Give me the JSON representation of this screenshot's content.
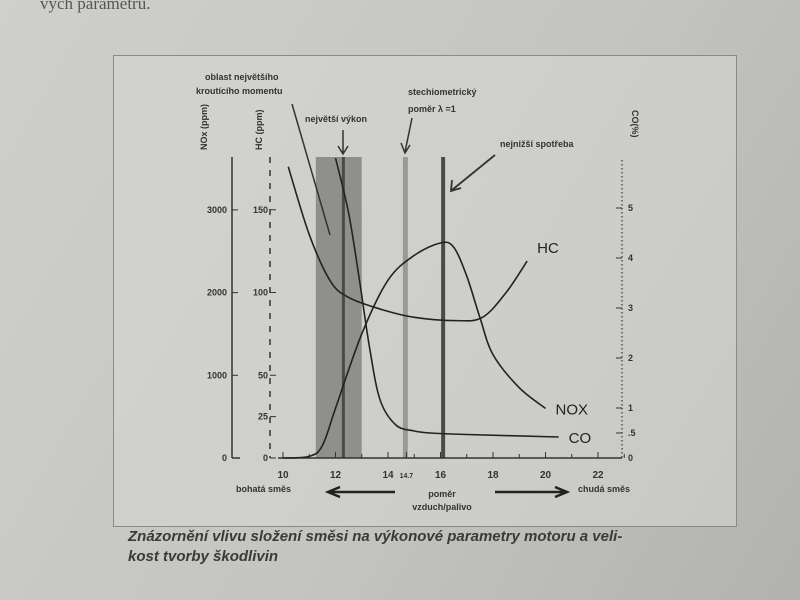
{
  "page_text_top": "vých parametrů.",
  "caption": [
    "Znázornění vlivu složení směsi na výkonové parametry motoru a veli-",
    "kost tvorby škodlivin"
  ],
  "chart_data": {
    "type": "line",
    "xlabel": "poměr vzduch/palivo",
    "x_left_label": "bohatá směs",
    "x_right_label": "chudá směs",
    "xlim": [
      10,
      23
    ],
    "x_ticks": [
      "10",
      "12",
      "14",
      "14.7",
      "16",
      "18",
      "20",
      "22"
    ],
    "x_tick_values": [
      10,
      12,
      14,
      14.7,
      16,
      18,
      20,
      22
    ],
    "axes": {
      "nox": {
        "label": "NOx (ppm)",
        "range": [
          0,
          3000
        ],
        "ticks": [
          0,
          1000,
          2000,
          3000
        ]
      },
      "hc": {
        "label": "HC (ppm)",
        "range": [
          0,
          150
        ],
        "ticks": [
          0,
          25,
          50,
          100,
          150
        ]
      },
      "co": {
        "label": "CO(%)",
        "range": [
          0,
          5
        ],
        "ticks": [
          0,
          0.5,
          1,
          2,
          3,
          4,
          5
        ],
        "tick_labels": [
          "0",
          ".5",
          "1",
          "2",
          "3",
          "4",
          "5"
        ]
      }
    },
    "series": [
      {
        "name": "NOx",
        "label": "NOX",
        "axis": "nox",
        "x": [
          10,
          11,
          11.5,
          12,
          13,
          14,
          15,
          16,
          16.5,
          17,
          17.5,
          18,
          19,
          20
        ],
        "y": [
          0,
          20,
          150,
          600,
          1500,
          2150,
          2450,
          2600,
          2550,
          2200,
          1700,
          1250,
          850,
          600
        ]
      },
      {
        "name": "HC",
        "label": "HC",
        "axis": "hc",
        "x": [
          10.2,
          11,
          11.8,
          12.5,
          13.7,
          15,
          16.6,
          17.6,
          18.5,
          19.3
        ],
        "y": [
          176,
          135,
          107,
          97,
          90,
          85,
          83,
          85,
          100,
          119
        ]
      },
      {
        "name": "CO",
        "label": "CO",
        "axis": "co",
        "x": [
          12,
          12.5,
          12.9,
          13.3,
          13.7,
          14.3,
          15,
          15.6,
          17,
          20.5
        ],
        "y": [
          6,
          4.9,
          3.6,
          2.2,
          1.16,
          0.66,
          0.54,
          0.5,
          0.47,
          0.42
        ]
      }
    ],
    "regions": [
      {
        "label": "oblast největšího kroutícího momentu",
        "x": [
          11.25,
          13.0
        ]
      }
    ],
    "markers": [
      {
        "label": "největší výkon",
        "x": 12.3
      },
      {
        "label": "stechiometrický poměr  λ =1",
        "x": 14.7
      },
      {
        "label": "nejnižší spotřeba",
        "x": 16.1
      }
    ]
  }
}
